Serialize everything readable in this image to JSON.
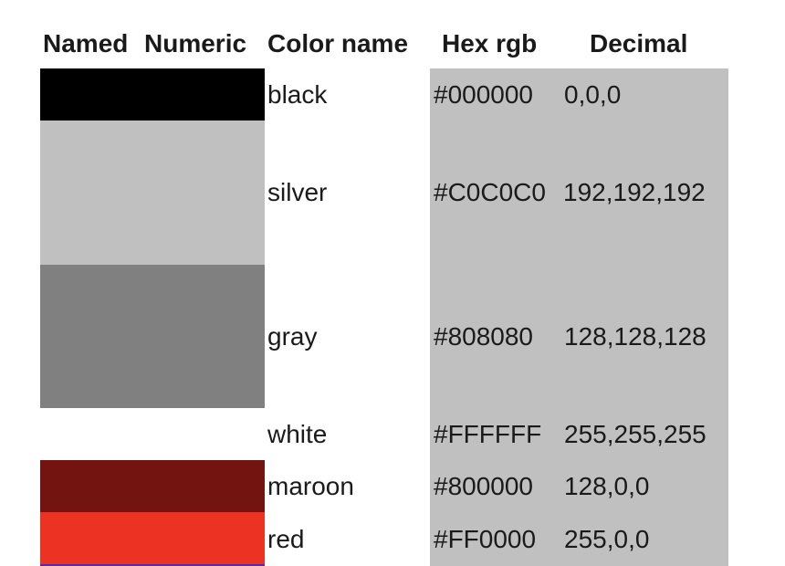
{
  "headers": {
    "named": "Named",
    "numeric": "Numeric",
    "color_name": "Color name",
    "hex_rgb": "Hex rgb",
    "decimal": "Decimal"
  },
  "rows": [
    {
      "name": "black",
      "hex": "#000000",
      "decimal": "0,0,0",
      "swatch_color": "#000000"
    },
    {
      "name": "silver",
      "hex": "#C0C0C0",
      "decimal": "192,192,192",
      "swatch_color": "#c0c0c0"
    },
    {
      "name": "gray",
      "hex": "#808080",
      "decimal": "128,128,128",
      "swatch_color": "#808080"
    },
    {
      "name": "white",
      "hex": "#FFFFFF",
      "decimal": "255,255,255",
      "swatch_color": "#ffffff"
    },
    {
      "name": "maroon",
      "hex": "#800000",
      "decimal": "128,0,0",
      "swatch_color": "#731410"
    },
    {
      "name": "red",
      "hex": "#FF0000",
      "decimal": "255,0,0",
      "swatch_color": "#ec3323"
    }
  ],
  "colors": {
    "panel_background": "#c0c0c0",
    "text": "#1a1a1a"
  }
}
